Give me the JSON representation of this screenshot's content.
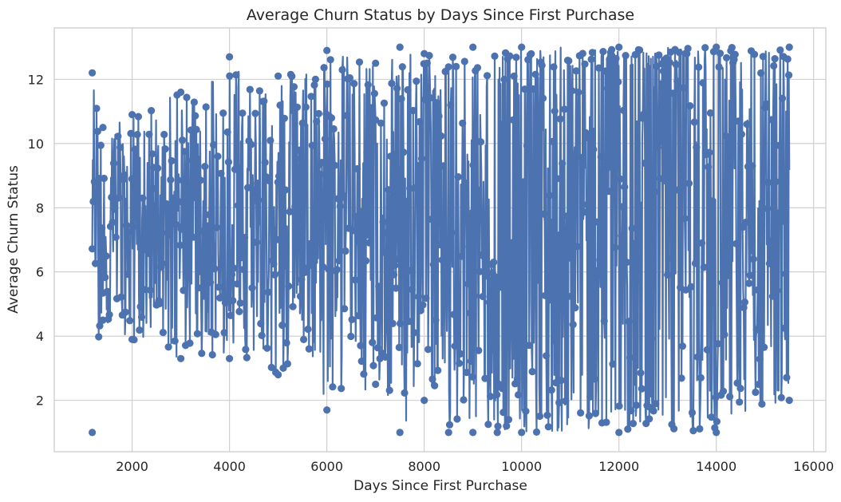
{
  "chart_data": {
    "type": "line",
    "title": "Average Churn Status by Days Since First Purchase",
    "xlabel": "Days Since First Purchase",
    "ylabel": "Average Churn Status",
    "xlim": [
      400,
      16250
    ],
    "ylim": [
      0.4,
      13.6
    ],
    "xticks": [
      2000,
      4000,
      6000,
      8000,
      10000,
      12000,
      14000,
      16000
    ],
    "yticks": [
      2,
      4,
      6,
      8,
      10,
      12
    ],
    "xtick_labels": [
      "2000",
      "4000",
      "6000",
      "8000",
      "10000",
      "12000",
      "14000",
      "16000"
    ],
    "ytick_labels": [
      "2",
      "4",
      "6",
      "8",
      "10",
      "12"
    ],
    "grid": true,
    "legend": "none",
    "colors": {
      "series": "#4c72b0",
      "grid": "#cccccc",
      "frame": "#cccccc",
      "text": "#262626",
      "background": "#ffffff"
    },
    "series": [
      {
        "marker": "circle",
        "x_range": [
          1180,
          15500
        ],
        "note_values": "approximate envelope of the dense oscillating series read from the plot",
        "upper_envelope": [
          [
            1180,
            12.2
          ],
          [
            1400,
            10.5
          ],
          [
            2000,
            10.9
          ],
          [
            3000,
            11.6
          ],
          [
            4000,
            12.7
          ],
          [
            5000,
            12.1
          ],
          [
            6000,
            12.9
          ],
          [
            7000,
            12.5
          ],
          [
            7500,
            13.0
          ],
          [
            8000,
            12.8
          ],
          [
            9000,
            13.0
          ],
          [
            10000,
            13.0
          ],
          [
            12000,
            13.0
          ],
          [
            14000,
            13.0
          ],
          [
            15500,
            13.0
          ]
        ],
        "lower_envelope": [
          [
            1180,
            1.0
          ],
          [
            1400,
            4.5
          ],
          [
            2000,
            3.9
          ],
          [
            3000,
            3.3
          ],
          [
            4000,
            3.3
          ],
          [
            5000,
            2.8
          ],
          [
            6000,
            1.7
          ],
          [
            7000,
            2.5
          ],
          [
            7500,
            1.0
          ],
          [
            8000,
            2.0
          ],
          [
            8500,
            1.0
          ],
          [
            9000,
            1.0
          ],
          [
            9500,
            1.0
          ],
          [
            10000,
            1.0
          ],
          [
            12000,
            1.0
          ],
          [
            14000,
            1.0
          ],
          [
            15500,
            2.0
          ]
        ],
        "typical_band": [
          [
            1200,
            5.5,
            9.5
          ],
          [
            4000,
            5.0,
            10.0
          ],
          [
            7000,
            4.0,
            11.0
          ],
          [
            10000,
            2.5,
            12.0
          ],
          [
            13000,
            2.0,
            12.5
          ],
          [
            15500,
            3.0,
            12.0
          ]
        ]
      }
    ]
  }
}
